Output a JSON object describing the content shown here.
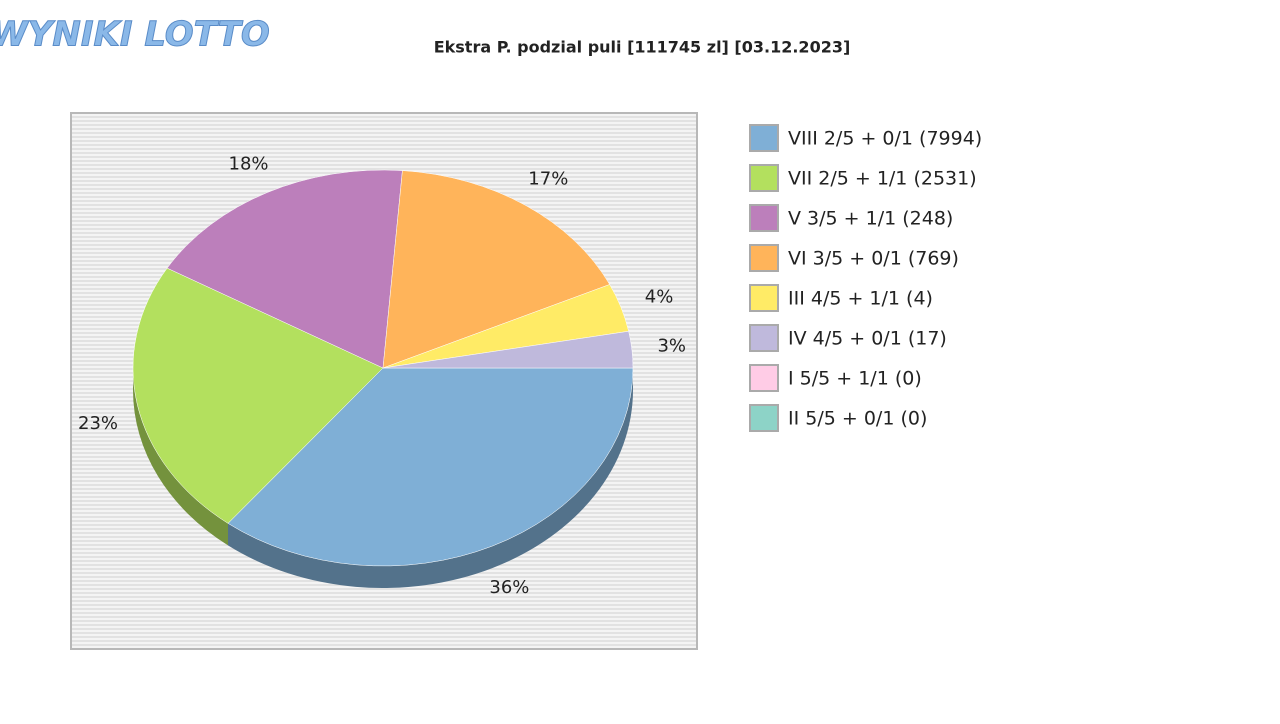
{
  "logo": "WYNIKI LOTTO",
  "chart_data": {
    "type": "pie",
    "title": "Ekstra P. podzial puli [111745 zl] [03.12.2023]",
    "categories": [
      "VIII 2/5 + 0/1 (7994)",
      "VII 2/5 + 1/1 (2531)",
      "V 3/5 + 1/1 (248)",
      "VI 3/5 + 0/1 (769)",
      "III 4/5 + 1/1 (4)",
      "IV 4/5 + 0/1 (17)",
      "I 5/5 + 1/1 (0)",
      "II 5/5 + 0/1 (0)"
    ],
    "values": [
      36,
      23,
      18,
      17,
      4,
      3,
      0,
      0
    ],
    "value_labels": [
      "36%",
      "23%",
      "18%",
      "17%",
      "4%",
      "3%",
      null,
      null
    ],
    "colors": [
      "#7fafd6",
      "#b3e05e",
      "#bc7fbb",
      "#ffb45a",
      "#ffeb66",
      "#bfb9dc",
      "#ffcce6",
      "#8dd3c7"
    ],
    "legend": "right"
  }
}
